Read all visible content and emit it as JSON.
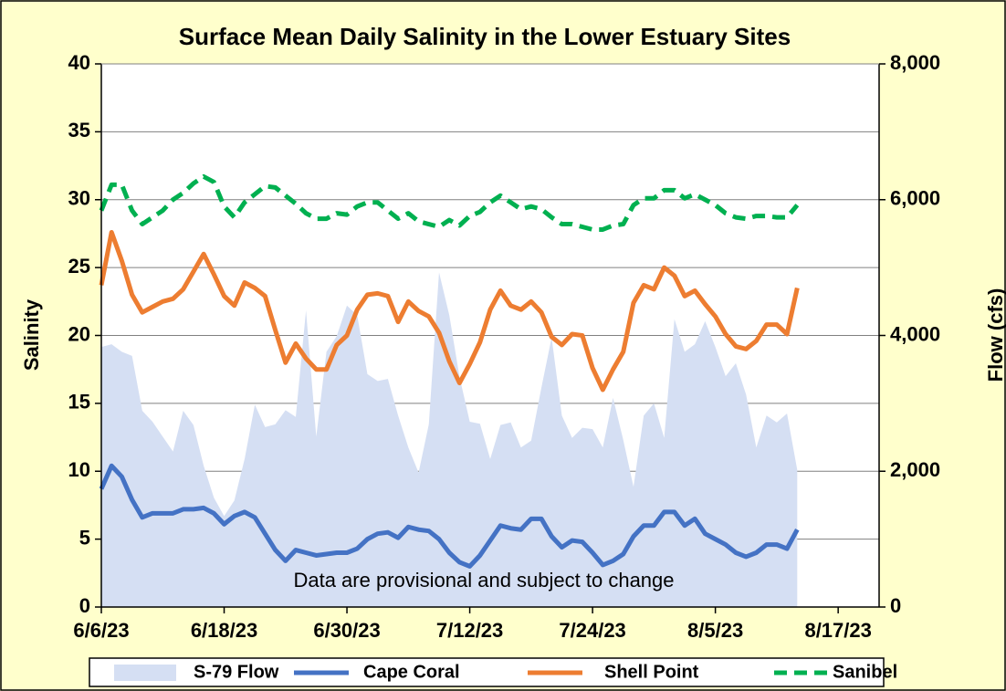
{
  "chart_data": {
    "type": "line",
    "title": "Surface Mean Daily Salinity in the Lower Estuary Sites",
    "y_label": "Salinity",
    "y2_label": "Flow (cfs)",
    "annotation": "Data are provisional and subject to change",
    "x": [
      "6/6/23",
      "6/7/23",
      "6/8/23",
      "6/9/23",
      "6/10/23",
      "6/11/23",
      "6/12/23",
      "6/13/23",
      "6/14/23",
      "6/15/23",
      "6/16/23",
      "6/17/23",
      "6/18/23",
      "6/19/23",
      "6/20/23",
      "6/21/23",
      "6/22/23",
      "6/23/23",
      "6/24/23",
      "6/25/23",
      "6/26/23",
      "6/27/23",
      "6/28/23",
      "6/29/23",
      "6/30/23",
      "7/1/23",
      "7/2/23",
      "7/3/23",
      "7/4/23",
      "7/5/23",
      "7/6/23",
      "7/7/23",
      "7/8/23",
      "7/9/23",
      "7/10/23",
      "7/11/23",
      "7/12/23",
      "7/13/23",
      "7/14/23",
      "7/15/23",
      "7/16/23",
      "7/17/23",
      "7/18/23",
      "7/19/23",
      "7/20/23",
      "7/21/23",
      "7/22/23",
      "7/23/23",
      "7/24/23",
      "7/25/23",
      "7/26/23",
      "7/27/23",
      "7/28/23",
      "7/29/23",
      "7/30/23",
      "7/31/23",
      "8/1/23",
      "8/2/23",
      "8/3/23",
      "8/4/23",
      "8/5/23",
      "8/6/23",
      "8/7/23",
      "8/8/23",
      "8/9/23",
      "8/10/23",
      "8/11/23",
      "8/12/23",
      "8/13/23"
    ],
    "xlim": [
      "6/6/23",
      "8/21/23"
    ],
    "xticks": [
      "6/6/23",
      "6/18/23",
      "6/30/23",
      "7/12/23",
      "7/24/23",
      "8/5/23",
      "8/17/23"
    ],
    "ylim": [
      0,
      40
    ],
    "yticks": [
      0,
      5,
      10,
      15,
      20,
      25,
      30,
      35,
      40
    ],
    "y2lim": [
      0,
      8000
    ],
    "y2ticks": [
      0,
      {
        "value": 2000,
        "label": "2,000"
      },
      {
        "value": 4000,
        "label": "4,000"
      },
      {
        "value": 6000,
        "label": "6,000"
      },
      {
        "value": 8000,
        "label": "8,000"
      }
    ],
    "grid": true,
    "series": [
      {
        "name": "S-79 Flow",
        "type": "area",
        "axis": "y2",
        "color": "#d5dff3",
        "values": [
          3830,
          3870,
          3760,
          3700,
          2890,
          2730,
          2510,
          2290,
          2890,
          2680,
          2080,
          1610,
          1340,
          1570,
          2180,
          2980,
          2650,
          2690,
          2900,
          2800,
          4370,
          2510,
          3760,
          3990,
          4440,
          4300,
          3430,
          3330,
          3360,
          2820,
          2350,
          1980,
          2690,
          4930,
          4300,
          3390,
          2730,
          2700,
          2180,
          2680,
          2720,
          2350,
          2450,
          3230,
          3970,
          2820,
          2490,
          2640,
          2620,
          2350,
          3080,
          2460,
          1770,
          2820,
          3000,
          2490,
          4240,
          3760,
          3870,
          4210,
          3830,
          3400,
          3590,
          3130,
          2350,
          2820,
          2720,
          2850,
          2020
        ]
      },
      {
        "name": "Cape Coral",
        "color": "#4472c4",
        "values": [
          8.7,
          10.4,
          9.6,
          7.9,
          6.6,
          6.9,
          6.9,
          6.9,
          7.2,
          7.2,
          7.3,
          6.9,
          6.1,
          6.7,
          7.0,
          6.6,
          5.4,
          4.2,
          3.4,
          4.2,
          4.0,
          3.8,
          3.9,
          4.0,
          4.0,
          4.3,
          5.0,
          5.4,
          5.5,
          5.1,
          5.9,
          5.7,
          5.6,
          5.0,
          4.0,
          3.3,
          3.0,
          3.8,
          4.9,
          6.0,
          5.8,
          5.7,
          6.5,
          6.5,
          5.2,
          4.4,
          4.9,
          4.8,
          4.0,
          3.1,
          3.4,
          3.9,
          5.2,
          6.0,
          6.0,
          7.0,
          7.0,
          6.0,
          6.5,
          5.4,
          5.0,
          4.6,
          4.0,
          3.7,
          4.0,
          4.6,
          4.6,
          4.3,
          5.7
        ]
      },
      {
        "name": "Shell Point",
        "color": "#ed7d31",
        "values": [
          23.7,
          27.6,
          25.5,
          23.0,
          21.7,
          22.1,
          22.5,
          22.7,
          23.4,
          24.7,
          26.0,
          24.5,
          22.9,
          22.2,
          23.9,
          23.5,
          22.9,
          20.4,
          18.0,
          19.4,
          18.3,
          17.5,
          17.5,
          19.3,
          20.0,
          21.9,
          23.0,
          23.1,
          22.9,
          21.0,
          22.5,
          21.8,
          21.4,
          20.2,
          18.1,
          16.5,
          17.9,
          19.5,
          21.9,
          23.3,
          22.2,
          21.9,
          22.5,
          21.7,
          19.9,
          19.3,
          20.1,
          20.0,
          17.6,
          16.0,
          17.5,
          18.8,
          22.4,
          23.7,
          23.4,
          25.0,
          24.4,
          22.9,
          23.3,
          22.3,
          21.4,
          20.1,
          19.2,
          19.0,
          19.6,
          20.8,
          20.8,
          20.1,
          23.5
        ]
      },
      {
        "name": "Sanibel",
        "color": "#00b050",
        "dashed": true,
        "values": [
          29.2,
          31.1,
          31.1,
          29.2,
          28.2,
          28.7,
          29.2,
          30.0,
          30.5,
          31.2,
          31.7,
          31.3,
          29.5,
          28.7,
          29.8,
          30.4,
          31.0,
          30.9,
          30.3,
          29.7,
          29.0,
          28.6,
          28.6,
          29.0,
          28.9,
          29.5,
          29.8,
          29.8,
          29.2,
          28.6,
          29.0,
          28.4,
          28.2,
          28.0,
          28.5,
          28.1,
          28.8,
          29.1,
          29.8,
          30.3,
          29.8,
          29.3,
          29.5,
          29.3,
          28.7,
          28.2,
          28.2,
          28.0,
          27.8,
          27.8,
          28.1,
          28.2,
          29.6,
          30.1,
          30.1,
          30.7,
          30.7,
          30.1,
          30.4,
          30.0,
          29.6,
          29.0,
          28.7,
          28.6,
          28.8,
          28.8,
          28.7,
          28.7,
          29.6
        ]
      }
    ]
  }
}
